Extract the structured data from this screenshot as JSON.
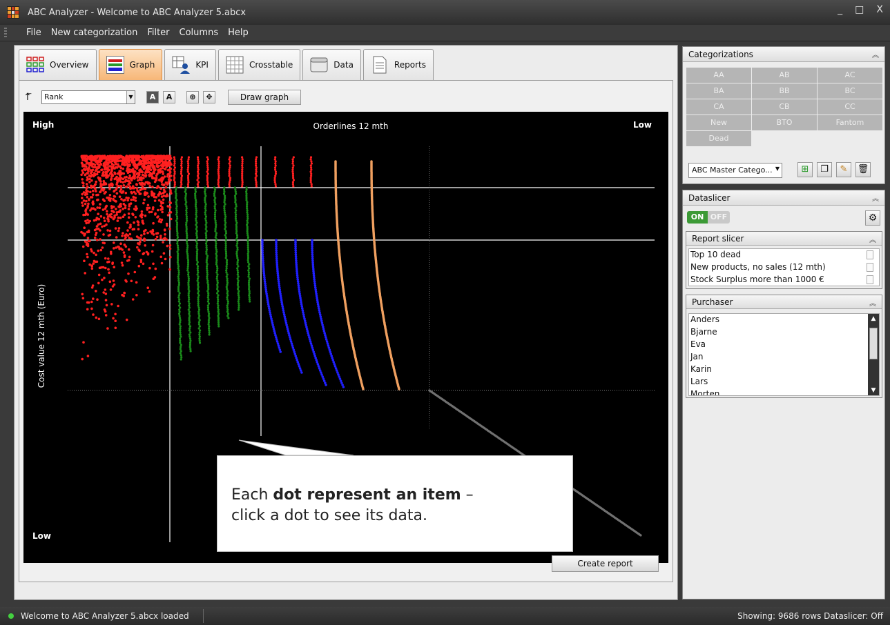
{
  "window": {
    "title": "ABC Analyzer - Welcome to ABC Analyzer 5.abcx",
    "controls": [
      "_",
      "□",
      "X"
    ]
  },
  "menu": [
    "File",
    "New categorization",
    "Filter",
    "Columns",
    "Help"
  ],
  "tabs": [
    {
      "label": "Overview",
      "icon": "overview-icon"
    },
    {
      "label": "Graph",
      "icon": "graph-icon",
      "active": true
    },
    {
      "label": "KPI",
      "icon": "kpi-icon"
    },
    {
      "label": "Crosstable",
      "icon": "crosstable-icon"
    },
    {
      "label": "Data",
      "icon": "data-icon"
    },
    {
      "label": "Reports",
      "icon": "reports-icon"
    }
  ],
  "toolbar": {
    "sort_value": "Rank",
    "btn_a1": "A",
    "btn_a2": "A",
    "draw_label": "Draw graph"
  },
  "graph": {
    "top_left": "High",
    "top_right": "Low",
    "bottom_left": "Low",
    "x_title": "Orderlines 12 mth",
    "y_title": "Cost value 12 mth (Euro)",
    "colors": {
      "red": "#ff2020",
      "green": "#1a8a1a",
      "blue": "#2020ff",
      "orange": "#f0a060",
      "gray": "#707070"
    }
  },
  "callout": {
    "prefix": "Each ",
    "bold": "dot represent an item",
    "suffix": " –",
    "line2": "click a dot to see its data."
  },
  "create_report_label": "Create report",
  "categorizations": {
    "header": "Categorizations",
    "cells": [
      "AA",
      "AB",
      "AC",
      "BA",
      "BB",
      "BC",
      "CA",
      "CB",
      "CC",
      "New",
      "BTO",
      "Fantom",
      "Dead"
    ],
    "combo_value": "ABC Master Catego..."
  },
  "dataslicer": {
    "header": "Dataslicer",
    "on_label": "ON",
    "off_label": "OFF"
  },
  "report_slicer": {
    "header": "Report slicer",
    "items": [
      "Top 10 dead",
      "New products, no sales (12 mth)",
      "Stock Surplus more than 1000 €"
    ]
  },
  "purchaser": {
    "header": "Purchaser",
    "items": [
      "Anders",
      "Bjarne",
      "Eva",
      "Jan",
      "Karin",
      "Lars",
      "Morten"
    ]
  },
  "status": {
    "left": "Welcome to ABC Analyzer 5.abcx loaded",
    "right": "Showing: 9686 rows  Dataslicer: Off"
  }
}
